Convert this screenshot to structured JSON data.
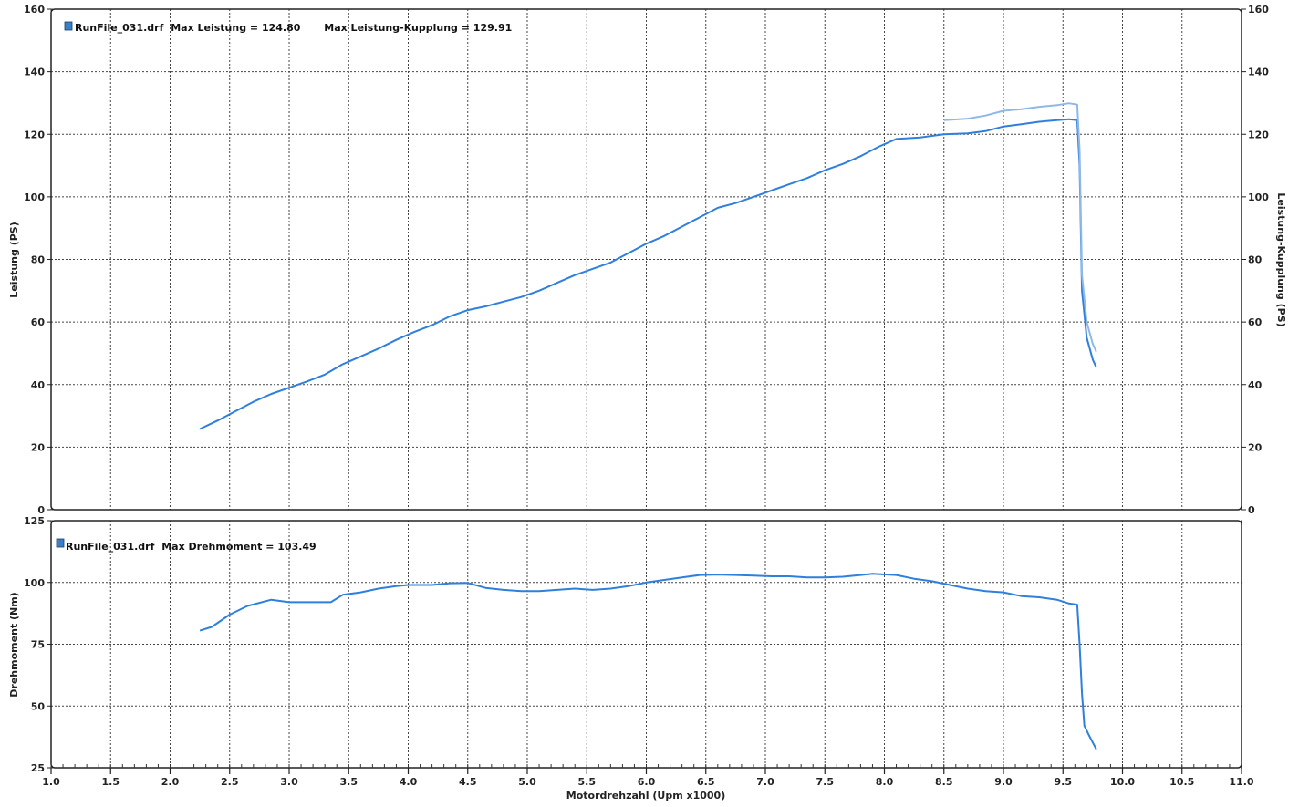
{
  "chart_data": [
    {
      "type": "line",
      "id": "power",
      "legend": {
        "file": "RunFile_031.drf",
        "text1": "Max Leistung = 124.80",
        "text2": "Max Leistung-Kupplung = 129.91",
        "marker_color": "#3a7fc8"
      },
      "ylabel_left": "Leistung (PS)",
      "ylabel_right": "Leistung-Kupplung (PS)",
      "xlim": [
        1.0,
        11.0
      ],
      "ylim": [
        0,
        160
      ],
      "yticks": [
        "0",
        "20",
        "40",
        "60",
        "80",
        "100",
        "120",
        "140",
        "160"
      ],
      "grid": true,
      "series": [
        {
          "color": "#2f7fdc",
          "points": [
            [
              2.25,
              25.8
            ],
            [
              2.4,
              28.5
            ],
            [
              2.55,
              31.5
            ],
            [
              2.7,
              34.5
            ],
            [
              2.85,
              37.0
            ],
            [
              3.0,
              39.0
            ],
            [
              3.15,
              41.0
            ],
            [
              3.3,
              43.2
            ],
            [
              3.45,
              46.5
            ],
            [
              3.6,
              49.0
            ],
            [
              3.75,
              51.5
            ],
            [
              3.9,
              54.3
            ],
            [
              4.05,
              56.8
            ],
            [
              4.2,
              59.0
            ],
            [
              4.35,
              61.8
            ],
            [
              4.5,
              63.8
            ],
            [
              4.65,
              65.0
            ],
            [
              4.8,
              66.5
            ],
            [
              4.95,
              68.0
            ],
            [
              5.1,
              70.0
            ],
            [
              5.25,
              72.5
            ],
            [
              5.4,
              75.0
            ],
            [
              5.55,
              77.0
            ],
            [
              5.7,
              79.0
            ],
            [
              5.85,
              82.0
            ],
            [
              6.0,
              85.0
            ],
            [
              6.15,
              87.5
            ],
            [
              6.3,
              90.5
            ],
            [
              6.45,
              93.5
            ],
            [
              6.6,
              96.5
            ],
            [
              6.75,
              98.0
            ],
            [
              6.9,
              100.0
            ],
            [
              7.05,
              102.0
            ],
            [
              7.2,
              104.0
            ],
            [
              7.35,
              106.0
            ],
            [
              7.5,
              108.5
            ],
            [
              7.65,
              110.5
            ],
            [
              7.8,
              113.0
            ],
            [
              7.95,
              116.0
            ],
            [
              8.1,
              118.5
            ],
            [
              8.3,
              119.0
            ],
            [
              8.5,
              120.0
            ],
            [
              8.7,
              120.3
            ],
            [
              8.85,
              121.0
            ],
            [
              9.0,
              122.5
            ],
            [
              9.15,
              123.2
            ],
            [
              9.3,
              124.0
            ],
            [
              9.45,
              124.5
            ],
            [
              9.55,
              124.8
            ],
            [
              9.62,
              124.5
            ],
            [
              9.64,
              110.0
            ],
            [
              9.66,
              70.0
            ],
            [
              9.7,
              55.0
            ],
            [
              9.75,
              48.0
            ],
            [
              9.78,
              45.5
            ]
          ]
        },
        {
          "color": "#8fb8e8",
          "points": [
            [
              8.5,
              124.5
            ],
            [
              8.7,
              125.0
            ],
            [
              8.85,
              126.0
            ],
            [
              9.0,
              127.5
            ],
            [
              9.15,
              128.0
            ],
            [
              9.3,
              128.8
            ],
            [
              9.45,
              129.3
            ],
            [
              9.55,
              129.91
            ],
            [
              9.62,
              129.5
            ],
            [
              9.64,
              115.0
            ],
            [
              9.66,
              75.0
            ],
            [
              9.7,
              60.0
            ],
            [
              9.75,
              53.0
            ],
            [
              9.78,
              50.5
            ]
          ]
        }
      ]
    },
    {
      "type": "line",
      "id": "torque",
      "legend": {
        "file": "RunFile_031.drf",
        "text1": "Max Drehmoment = 103.49",
        "marker_color": "#3a7fc8"
      },
      "ylabel_left": "Drehmoment (Nm)",
      "xlabel": "Motordrehzahl (Upm x1000)",
      "xlim": [
        1.0,
        11.0
      ],
      "ylim": [
        25,
        125
      ],
      "yticks": [
        "25",
        "50",
        "75",
        "100",
        "125"
      ],
      "xticks": [
        "1.0",
        "1.5",
        "2.0",
        "2.5",
        "3.0",
        "3.5",
        "4.0",
        "4.5",
        "5.0",
        "5.5",
        "6.0",
        "6.5",
        "7.0",
        "7.5",
        "8.0",
        "8.5",
        "9.0",
        "9.5",
        "10.0",
        "10.5",
        "11.0"
      ],
      "grid": true,
      "series": [
        {
          "color": "#2f7fdc",
          "points": [
            [
              2.25,
              80.5
            ],
            [
              2.35,
              82.0
            ],
            [
              2.5,
              87.0
            ],
            [
              2.65,
              90.5
            ],
            [
              2.85,
              93.0
            ],
            [
              3.0,
              92.0
            ],
            [
              3.2,
              92.0
            ],
            [
              3.35,
              92.0
            ],
            [
              3.45,
              95.0
            ],
            [
              3.6,
              96.0
            ],
            [
              3.75,
              97.5
            ],
            [
              3.9,
              98.5
            ],
            [
              4.0,
              99.0
            ],
            [
              4.2,
              99.0
            ],
            [
              4.35,
              99.7
            ],
            [
              4.5,
              99.8
            ],
            [
              4.65,
              97.8
            ],
            [
              4.8,
              97.0
            ],
            [
              4.95,
              96.5
            ],
            [
              5.1,
              96.5
            ],
            [
              5.25,
              97.0
            ],
            [
              5.4,
              97.5
            ],
            [
              5.55,
              97.0
            ],
            [
              5.7,
              97.5
            ],
            [
              5.85,
              98.5
            ],
            [
              6.0,
              100.0
            ],
            [
              6.15,
              101.0
            ],
            [
              6.3,
              102.0
            ],
            [
              6.45,
              103.0
            ],
            [
              6.6,
              103.2
            ],
            [
              6.75,
              103.0
            ],
            [
              6.9,
              102.8
            ],
            [
              7.05,
              102.5
            ],
            [
              7.2,
              102.5
            ],
            [
              7.35,
              102.0
            ],
            [
              7.5,
              102.0
            ],
            [
              7.65,
              102.3
            ],
            [
              7.8,
              103.0
            ],
            [
              7.9,
              103.49
            ],
            [
              8.1,
              103.0
            ],
            [
              8.25,
              101.5
            ],
            [
              8.4,
              100.5
            ],
            [
              8.55,
              99.0
            ],
            [
              8.7,
              97.5
            ],
            [
              8.85,
              96.5
            ],
            [
              9.0,
              96.0
            ],
            [
              9.15,
              94.5
            ],
            [
              9.3,
              94.0
            ],
            [
              9.45,
              93.0
            ],
            [
              9.55,
              91.5
            ],
            [
              9.62,
              91.0
            ],
            [
              9.64,
              75.0
            ],
            [
              9.66,
              55.0
            ],
            [
              9.68,
              42.0
            ],
            [
              9.72,
              38.0
            ],
            [
              9.78,
              32.5
            ]
          ]
        }
      ]
    }
  ]
}
